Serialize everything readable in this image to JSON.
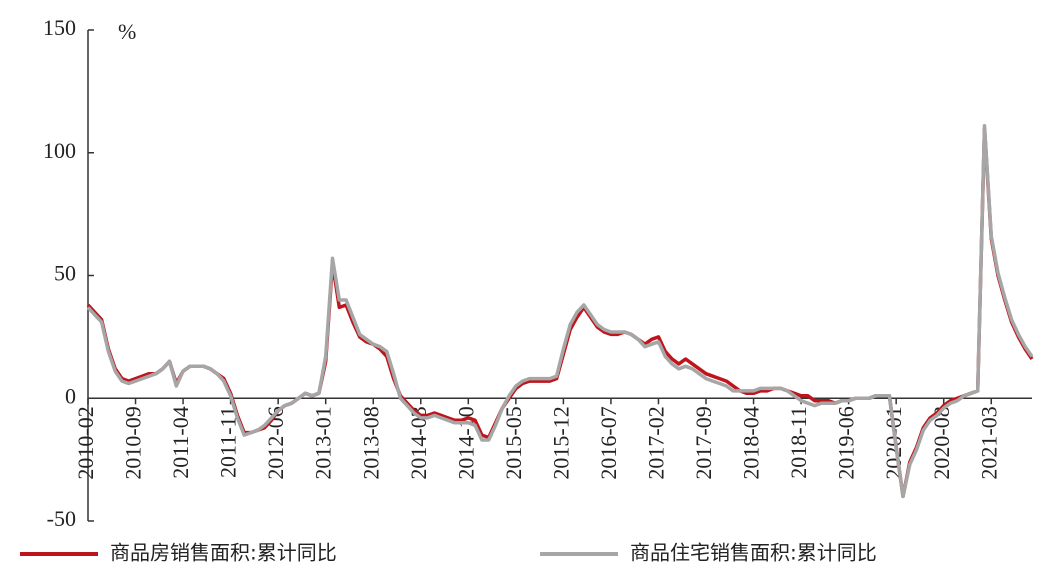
{
  "chart_data": {
    "type": "line",
    "y_label": "%",
    "categories": [
      "2010-02",
      null,
      null,
      null,
      null,
      null,
      null,
      "2010-09",
      null,
      null,
      null,
      null,
      null,
      null,
      "2011-04",
      null,
      null,
      null,
      null,
      null,
      null,
      "2011-11",
      null,
      null,
      null,
      null,
      null,
      null,
      "2012-06",
      null,
      null,
      null,
      null,
      null,
      null,
      "2013-01",
      null,
      null,
      null,
      null,
      null,
      null,
      "2013-08",
      null,
      null,
      null,
      null,
      null,
      null,
      "2014-03",
      null,
      null,
      null,
      null,
      null,
      null,
      "2014-10",
      null,
      null,
      null,
      null,
      null,
      null,
      "2015-05",
      null,
      null,
      null,
      null,
      null,
      null,
      "2015-12",
      null,
      null,
      null,
      null,
      null,
      null,
      "2016-07",
      null,
      null,
      null,
      null,
      null,
      null,
      "2017-02",
      null,
      null,
      null,
      null,
      null,
      null,
      "2017-09",
      null,
      null,
      null,
      null,
      null,
      null,
      "2018-04",
      null,
      null,
      null,
      null,
      null,
      null,
      "2018-11",
      null,
      null,
      null,
      null,
      null,
      null,
      "2019-06",
      null,
      null,
      null,
      null,
      null,
      null,
      "2020-01",
      null,
      null,
      null,
      null,
      null,
      null,
      "2020-08",
      null,
      null,
      null,
      null,
      null,
      null,
      "2021-03",
      null,
      null,
      null,
      null,
      null,
      null
    ],
    "series": [
      {
        "name": "商品房销售面积:累计同比",
        "color": "#c0141c",
        "values": [
          38,
          35,
          32,
          20,
          12,
          8,
          7,
          8,
          9,
          10,
          10,
          12,
          15,
          6,
          11,
          13,
          13,
          13,
          12,
          10,
          8,
          2,
          -7,
          -14,
          -14,
          -13,
          -12,
          -9,
          -5,
          -3,
          -2,
          0,
          2,
          1,
          2,
          15,
          55,
          37,
          38,
          31,
          25,
          23,
          22,
          20,
          17,
          8,
          1,
          -2,
          -5,
          -7,
          -7,
          -6,
          -7,
          -8,
          -9,
          -9,
          -8,
          -9,
          -15,
          -16,
          -10,
          -4,
          0,
          4,
          6,
          7,
          7,
          7,
          7,
          8,
          18,
          28,
          33,
          37,
          33,
          29,
          27,
          26,
          26,
          27,
          26,
          24,
          22,
          24,
          25,
          19,
          16,
          14,
          16,
          14,
          12,
          10,
          9,
          8,
          7,
          5,
          3,
          2,
          2,
          3,
          3,
          4,
          4,
          3,
          2,
          1,
          1,
          -1,
          -1,
          -1,
          -2,
          -1,
          -1,
          0,
          0,
          0,
          1,
          1,
          1,
          -20,
          -40,
          -26,
          -20,
          -12,
          -8,
          -6,
          -3,
          -1,
          0,
          1,
          2,
          3,
          110,
          65,
          50,
          40,
          31,
          25,
          20,
          16
        ]
      },
      {
        "name": "商品住宅销售面积:累计同比",
        "color": "#a6a6a6",
        "values": [
          37,
          34,
          31,
          19,
          11,
          7,
          6,
          7,
          8,
          9,
          10,
          12,
          15,
          5,
          11,
          13,
          13,
          13,
          12,
          10,
          7,
          1,
          -8,
          -15,
          -14,
          -13,
          -11,
          -8,
          -5,
          -3,
          -2,
          0,
          2,
          1,
          2,
          17,
          57,
          40,
          40,
          33,
          26,
          24,
          22,
          21,
          19,
          10,
          0,
          -3,
          -6,
          -8,
          -8,
          -7,
          -8,
          -9,
          -10,
          -10,
          -10,
          -11,
          -17,
          -17,
          -11,
          -4,
          1,
          5,
          7,
          8,
          8,
          8,
          8,
          9,
          20,
          30,
          35,
          38,
          34,
          30,
          28,
          27,
          27,
          27,
          26,
          24,
          21,
          22,
          23,
          17,
          14,
          12,
          13,
          12,
          10,
          8,
          7,
          6,
          5,
          3,
          3,
          3,
          3,
          4,
          4,
          4,
          4,
          3,
          1,
          -1,
          -2,
          -3,
          -2,
          -2,
          -2,
          -1,
          -1,
          0,
          0,
          0,
          1,
          1,
          1,
          -20,
          -40,
          -27,
          -21,
          -13,
          -9,
          -7,
          -4,
          -2,
          -1,
          1,
          2,
          3,
          111,
          66,
          51,
          41,
          32,
          26,
          21,
          17
        ]
      }
    ],
    "ylim": [
      -50,
      150
    ],
    "yticks": [
      -50,
      0,
      50,
      100,
      150
    ]
  }
}
